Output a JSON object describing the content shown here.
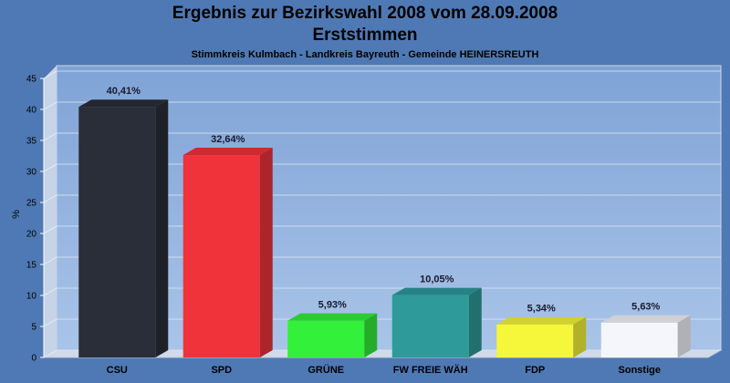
{
  "chart_data": {
    "type": "bar",
    "title": "Ergebnis zur Bezirkswahl 2008 vom 28.09.2008",
    "subtitle": "Erststimmen",
    "caption": "Stimmkreis Kulmbach - Landkreis Bayreuth - Gemeinde HEINERSREUTH",
    "ylabel": "%",
    "xlabel": "",
    "ylim": [
      0,
      45
    ],
    "yticks": [
      0,
      5,
      10,
      15,
      20,
      25,
      30,
      35,
      40,
      45
    ],
    "grid": true,
    "categories": [
      "CSU",
      "SPD",
      "GRÜNE",
      "FW FREIE WÄH",
      "FDP",
      "Sonstige"
    ],
    "values": [
      40.41,
      32.64,
      5.93,
      10.05,
      5.34,
      5.63
    ],
    "value_labels": [
      "40,41%",
      "32,64%",
      "5,93%",
      "10,05%",
      "5,34%",
      "5,63%"
    ],
    "colors": [
      "#2a2e38",
      "#f0323a",
      "#33f03a",
      "#2e9a9a",
      "#f6f63a",
      "#f4f6fb"
    ]
  }
}
